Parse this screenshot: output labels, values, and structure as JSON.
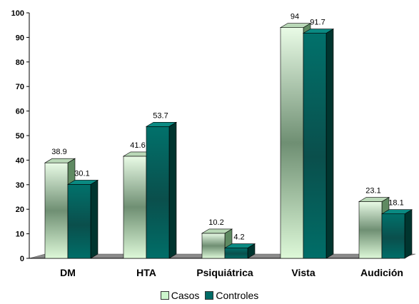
{
  "chart_data": {
    "type": "bar",
    "categories": [
      "DM",
      "HTA",
      "Psiquiátrica",
      "Vista",
      "Audición"
    ],
    "series": [
      {
        "name": "Casos",
        "values": [
          38.9,
          41.6,
          10.2,
          94,
          23.1
        ],
        "labels": [
          "38.9",
          "41.6",
          "10.2",
          "94",
          "23.1"
        ],
        "color": "#ccf5cc"
      },
      {
        "name": "Controles",
        "values": [
          30.1,
          53.7,
          4.2,
          91.7,
          18.1
        ],
        "labels": [
          "30.1",
          "53.7",
          "4.2",
          "91.7",
          "18.1"
        ],
        "color": "#006b66"
      }
    ],
    "yticks": [
      "0",
      "10",
      "20",
      "30",
      "40",
      "50",
      "60",
      "70",
      "80",
      "90",
      "100"
    ],
    "ylim": [
      0,
      100
    ],
    "grid": false,
    "legend_position": "bottom-center",
    "three_d": true
  }
}
